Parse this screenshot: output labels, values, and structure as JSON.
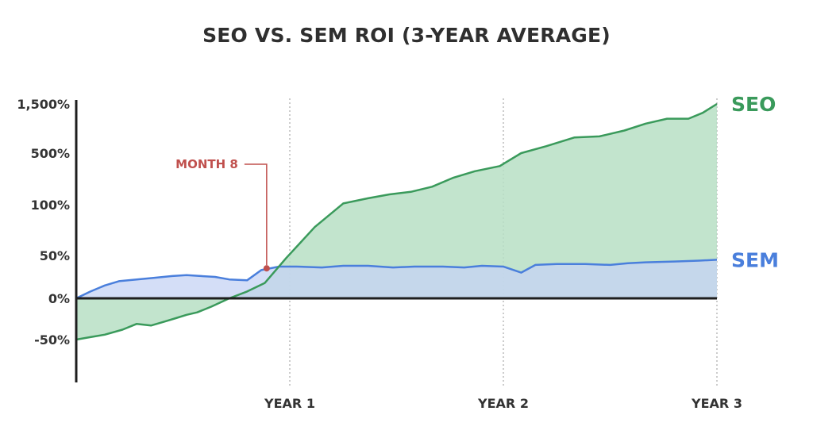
{
  "chart_data": {
    "type": "area",
    "title": "SEO VS. SEM ROI (3-YEAR AVERAGE)",
    "xlabel": "",
    "ylabel": "",
    "x_ticks": [
      {
        "label": "YEAR 1",
        "month": 12
      },
      {
        "label": "YEAR 2",
        "month": 24
      },
      {
        "label": "YEAR 3",
        "month": 36
      }
    ],
    "y_ticks": [
      {
        "label": "1,500%",
        "value": 1500
      },
      {
        "label": "500%",
        "value": 500
      },
      {
        "label": "100%",
        "value": 100
      },
      {
        "label": "50%",
        "value": 50
      },
      {
        "label": "0%",
        "value": 0
      },
      {
        "label": "-50%",
        "value": -50
      }
    ],
    "grid": "vertical dotted lines at year marks",
    "series": [
      {
        "name": "SEO",
        "color": "#3a9a5b",
        "fill": "#b7dfc4",
        "x": [
          0,
          0.8,
          1.6,
          2.6,
          3.4,
          4.2,
          5,
          5.6,
          6.2,
          6.8,
          7.6,
          8.6,
          9.6,
          10.6,
          11.8,
          13.4,
          15,
          16.4,
          17.6,
          18.8,
          20,
          21.2,
          22.4,
          23.8,
          25,
          26.4,
          28,
          29.4,
          30.8,
          32,
          33.2,
          34.4,
          35.2,
          36
        ],
        "y": [
          -50,
          -47,
          -44,
          -38,
          -31,
          -33,
          -28,
          -24,
          -20,
          -17,
          -10,
          0,
          8,
          18,
          47,
          78,
          110,
          150,
          180,
          200,
          240,
          310,
          360,
          400,
          500,
          640,
          820,
          840,
          960,
          1100,
          1200,
          1200,
          1320,
          1500
        ]
      },
      {
        "name": "SEM",
        "color": "#4a7fdc",
        "fill": "#c6d3f4",
        "x": [
          0,
          0.8,
          1.6,
          2.4,
          3.4,
          4.4,
          5.4,
          6.2,
          7,
          7.8,
          8.6,
          9.6,
          10.4,
          11.4,
          12.4,
          13.8,
          15,
          16.4,
          17.8,
          19,
          20.6,
          21.8,
          22.8,
          24,
          25,
          25.8,
          27,
          28.6,
          30,
          31,
          32,
          33.6,
          35,
          36
        ],
        "y": [
          0,
          8,
          15,
          20,
          22,
          24,
          26,
          27,
          26,
          25,
          22,
          21,
          33,
          37,
          37,
          36,
          38,
          38,
          36,
          37,
          37,
          36,
          38,
          37,
          30,
          39,
          40,
          40,
          39,
          41,
          42,
          43,
          44,
          45
        ]
      }
    ],
    "annotations": [
      {
        "text": "MONTH 8",
        "month": 10.7,
        "value": 35
      }
    ],
    "legend": "series names placed at right end of each line"
  }
}
